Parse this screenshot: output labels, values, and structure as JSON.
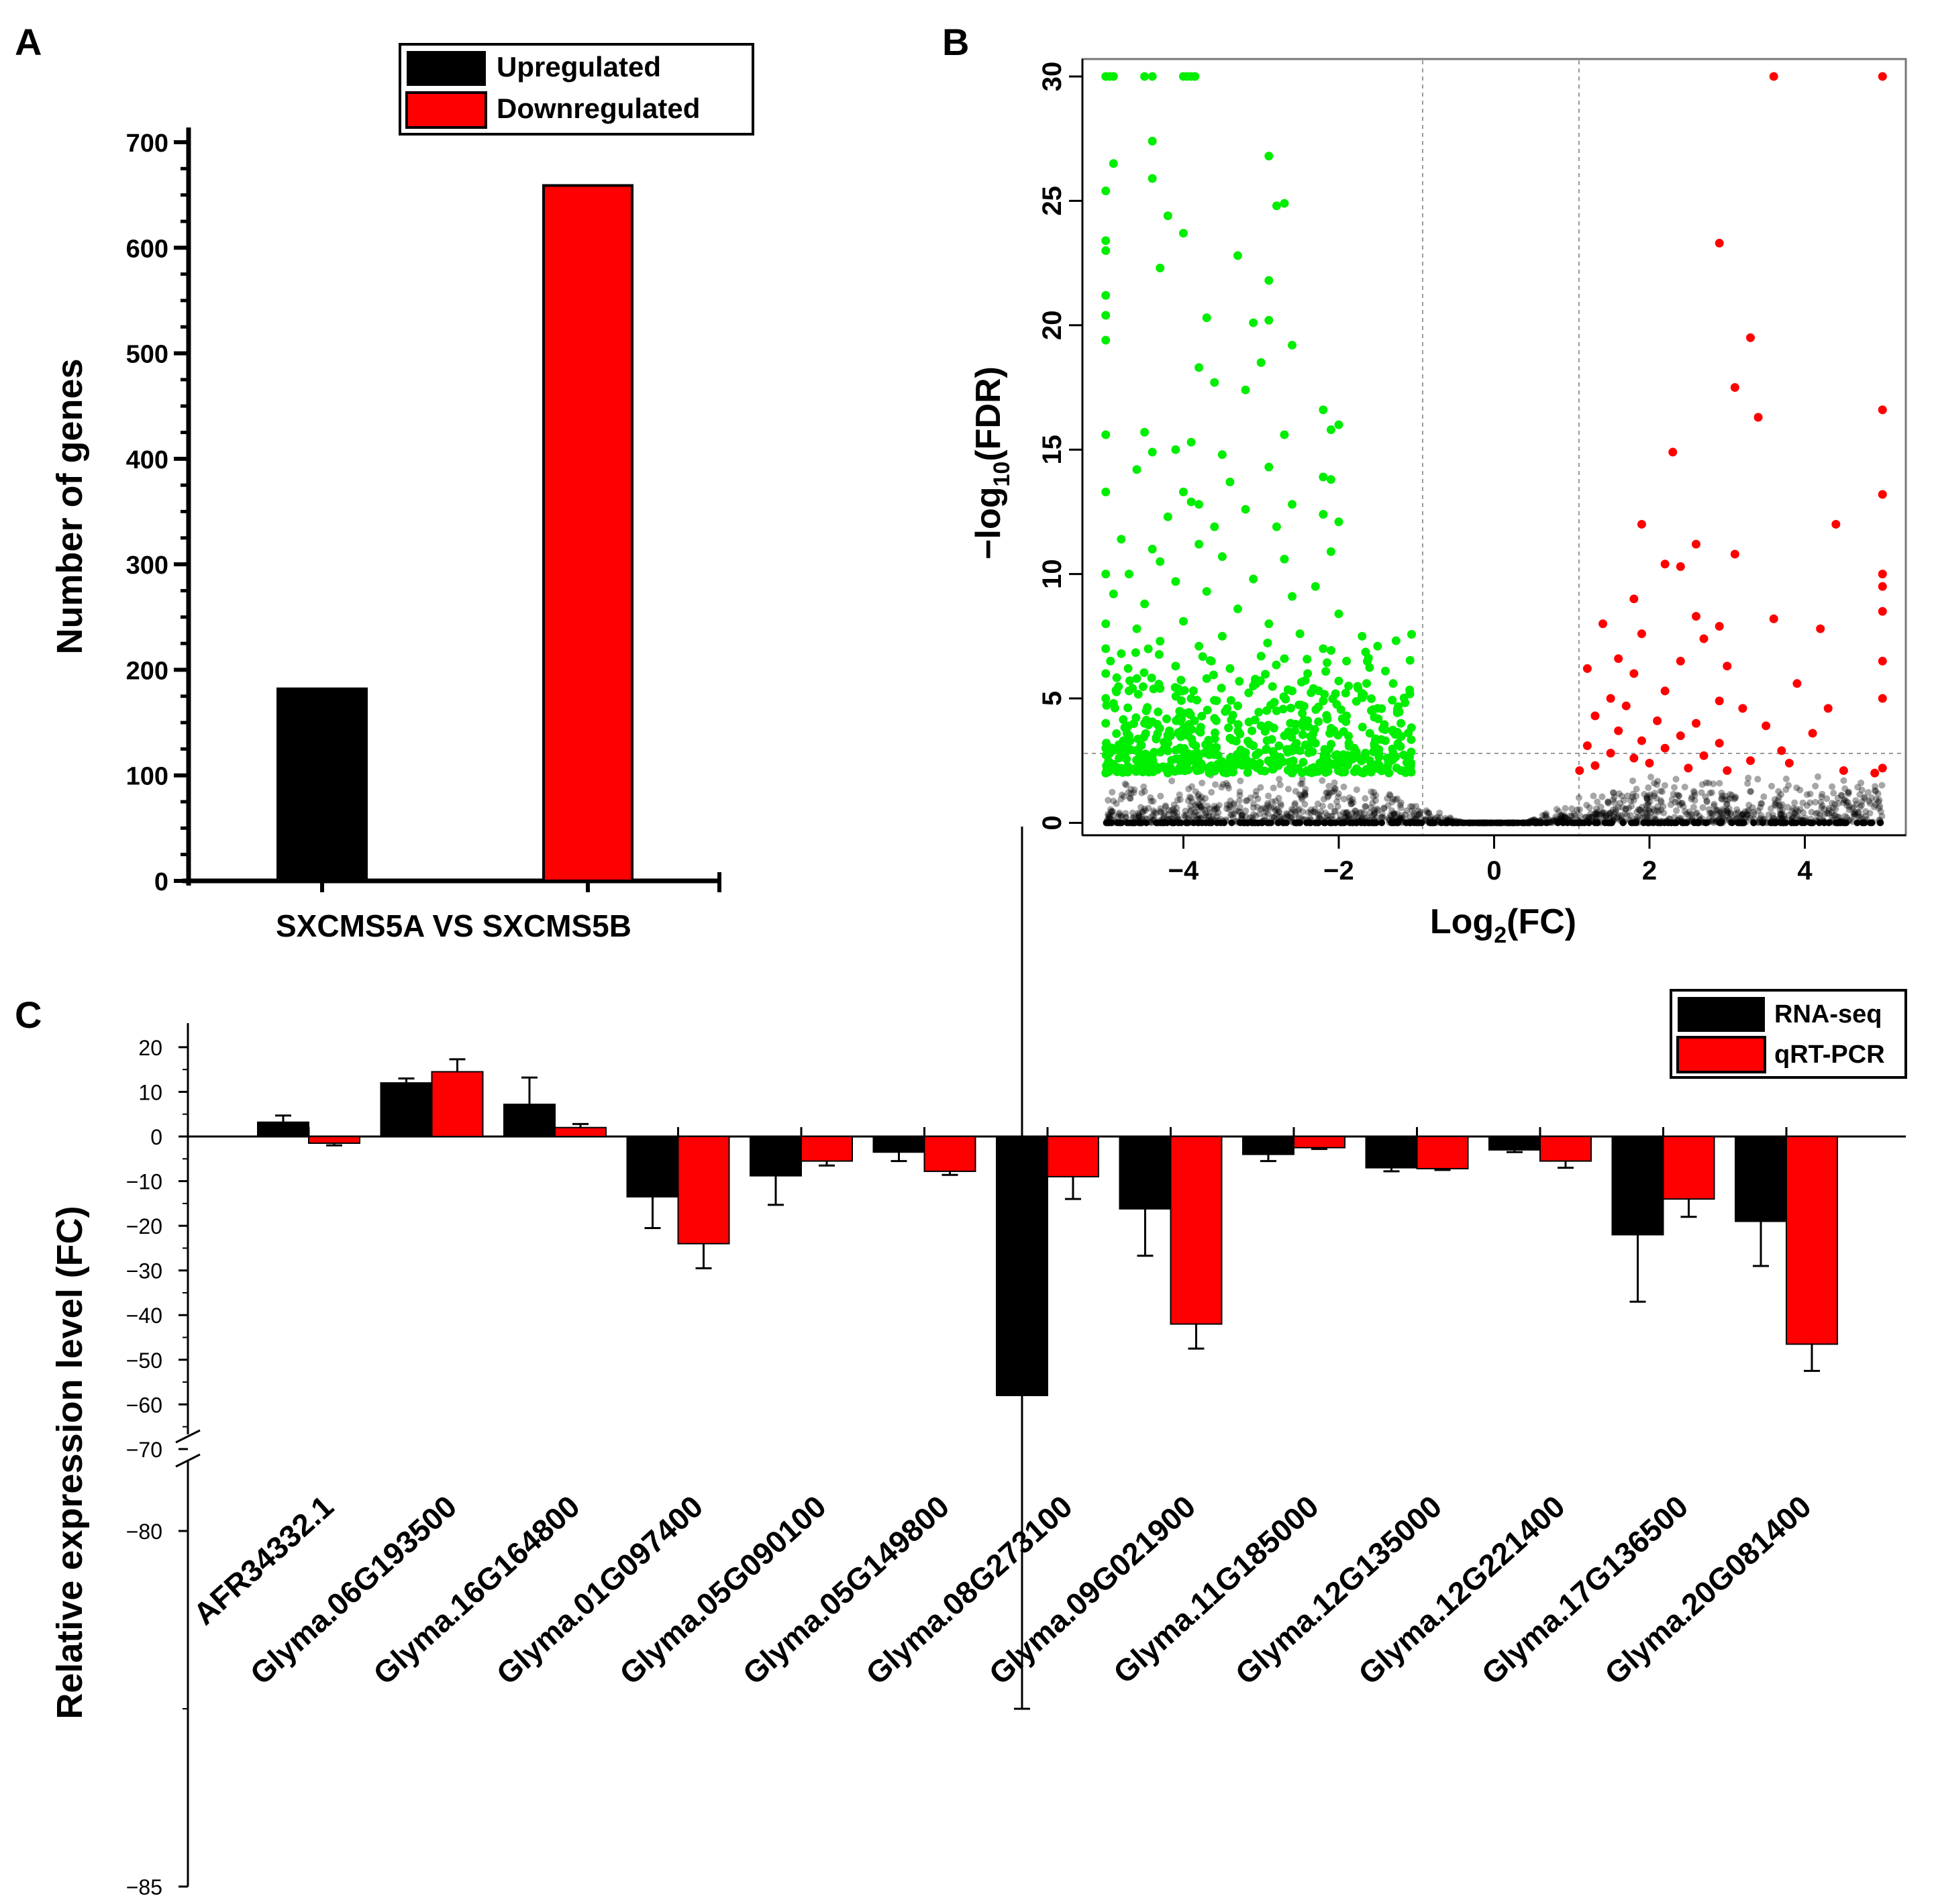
{
  "figure": {
    "panel_labels": [
      "A",
      "B",
      "C"
    ]
  },
  "chart_data": [
    {
      "panel": "A",
      "type": "bar",
      "title": "",
      "xlabel": "SXCMS5A VS SXCMS5B",
      "ylabel": "Number of genes",
      "ylim": [
        0,
        700
      ],
      "yticks": [
        "0",
        "100",
        "200",
        "300",
        "400",
        "500",
        "600",
        "700"
      ],
      "legend_position": "top-right",
      "series": [
        {
          "name": "Upregulated",
          "color": "#000000",
          "values": [
            182
          ]
        },
        {
          "name": "Downregulated",
          "color": "#ff0000",
          "values": [
            659
          ]
        }
      ]
    },
    {
      "panel": "B",
      "type": "scatter",
      "title": "",
      "xlabel_main": "Log",
      "xlabel_sub": "2",
      "xlabel_end": "(FC)",
      "ylabel_main": "−log",
      "ylabel_sub": "10",
      "ylabel_end": "(FDR)",
      "xlim": [
        -5.3,
        5.3
      ],
      "ylim": [
        -0.5,
        30.7
      ],
      "xticks": [
        {
          "value": -4,
          "label": "−4"
        },
        {
          "value": -2,
          "label": "−2"
        },
        {
          "value": 0,
          "label": "0"
        },
        {
          "value": 2,
          "label": "2"
        },
        {
          "value": 4,
          "label": "4"
        }
      ],
      "yticks": [
        {
          "value": 0,
          "label": "0"
        },
        {
          "value": 5,
          "label": "5"
        },
        {
          "value": 10,
          "label": "10"
        },
        {
          "value": 15,
          "label": "15"
        },
        {
          "value": 20,
          "label": "20"
        },
        {
          "value": 25,
          "label": "25"
        },
        {
          "value": 30,
          "label": "30"
        }
      ],
      "thresholds": {
        "log2fc": [
          -1,
          1
        ],
        "neg_log10_fdr": 2
      },
      "colors": {
        "down": "#00ee00",
        "up": "#ff0000",
        "ns": "#000000"
      },
      "down_highlight_points": [
        [
          -5.0,
          30
        ],
        [
          -4.95,
          30
        ],
        [
          -4.9,
          30
        ],
        [
          -4.5,
          30
        ],
        [
          -4.4,
          30
        ],
        [
          -4.0,
          30
        ],
        [
          -3.95,
          30
        ],
        [
          -3.9,
          30
        ],
        [
          -3.85,
          30
        ],
        [
          -4.4,
          27.4
        ],
        [
          -2.9,
          26.8
        ],
        [
          -4.9,
          26.5
        ],
        [
          -4.4,
          25.9
        ],
        [
          -5.0,
          25.4
        ],
        [
          -2.7,
          24.9
        ],
        [
          -2.8,
          24.8
        ],
        [
          -4.2,
          24.4
        ],
        [
          -4.0,
          23.7
        ],
        [
          -5.0,
          23.4
        ],
        [
          -5.0,
          23.0
        ],
        [
          -3.3,
          22.8
        ],
        [
          -4.3,
          22.3
        ],
        [
          -2.9,
          21.8
        ],
        [
          -5.0,
          21.2
        ],
        [
          -5.0,
          20.4
        ],
        [
          -3.7,
          20.3
        ],
        [
          -2.9,
          20.2
        ],
        [
          -3.1,
          20.1
        ],
        [
          -5.0,
          19.4
        ],
        [
          -2.6,
          19.2
        ],
        [
          -3.0,
          18.5
        ],
        [
          -3.8,
          18.3
        ],
        [
          -3.6,
          17.7
        ],
        [
          -3.2,
          17.4
        ],
        [
          -2.2,
          16.6
        ],
        [
          -2.0,
          16.0
        ],
        [
          -2.1,
          15.8
        ],
        [
          -4.5,
          15.7
        ],
        [
          -5.0,
          15.6
        ],
        [
          -3.9,
          15.3
        ],
        [
          -2.7,
          15.6
        ],
        [
          -4.1,
          15.0
        ],
        [
          -4.4,
          14.9
        ],
        [
          -3.5,
          14.8
        ],
        [
          -2.9,
          14.3
        ],
        [
          -4.6,
          14.2
        ],
        [
          -2.2,
          13.9
        ],
        [
          -2.1,
          13.8
        ],
        [
          -3.4,
          13.7
        ],
        [
          -4.0,
          13.3
        ],
        [
          -5.0,
          13.3
        ],
        [
          -3.9,
          12.9
        ],
        [
          -3.8,
          12.8
        ],
        [
          -2.6,
          12.8
        ],
        [
          -3.2,
          12.6
        ],
        [
          -2.2,
          12.4
        ],
        [
          -4.2,
          12.3
        ],
        [
          -2.0,
          12.1
        ],
        [
          -3.6,
          11.9
        ],
        [
          -2.8,
          11.9
        ],
        [
          -4.8,
          11.4
        ],
        [
          -3.8,
          11.2
        ],
        [
          -4.4,
          11.0
        ],
        [
          -2.1,
          10.9
        ],
        [
          -3.5,
          10.7
        ],
        [
          -2.7,
          10.6
        ],
        [
          -4.3,
          10.5
        ],
        [
          -4.7,
          10.0
        ],
        [
          -3.1,
          9.8
        ],
        [
          -4.1,
          9.7
        ],
        [
          -2.3,
          9.5
        ],
        [
          -3.7,
          9.3
        ],
        [
          -4.9,
          9.2
        ],
        [
          -2.6,
          9.1
        ],
        [
          -4.5,
          8.8
        ],
        [
          -3.3,
          8.6
        ],
        [
          -2.0,
          8.4
        ],
        [
          -4.0,
          8.1
        ],
        [
          -2.9,
          8.0
        ],
        [
          -4.6,
          7.8
        ],
        [
          -1.7,
          7.5
        ],
        [
          -3.5,
          7.5
        ],
        [
          -2.5,
          7.6
        ],
        [
          -4.3,
          7.3
        ],
        [
          -3.8,
          7.1
        ],
        [
          -2.2,
          7.0
        ],
        [
          -1.5,
          7.1
        ],
        [
          -4.8,
          6.8
        ],
        [
          -3.0,
          6.7
        ],
        [
          -2.7,
          6.6
        ],
        [
          -1.9,
          6.5
        ],
        [
          -4.1,
          6.3
        ],
        [
          -3.4,
          6.2
        ],
        [
          -1.4,
          6.1
        ],
        [
          -2.4,
          6.0
        ],
        [
          -4.6,
          5.8
        ],
        [
          -3.7,
          5.8
        ],
        [
          -2.0,
          5.7
        ],
        [
          -1.3,
          5.6
        ],
        [
          -3.1,
          5.5
        ],
        [
          -4.3,
          5.4
        ],
        [
          -2.6,
          5.3
        ],
        [
          -1.7,
          5.2
        ],
        [
          -3.9,
          5.0
        ],
        [
          -2.2,
          4.9
        ],
        [
          -4.9,
          4.8
        ],
        [
          -3.3,
          4.7
        ],
        [
          -1.5,
          4.6
        ],
        [
          -2.8,
          4.5
        ],
        [
          -4.0,
          4.4
        ],
        [
          -1.9,
          4.3
        ],
        [
          -3.6,
          4.2
        ],
        [
          -2.4,
          4.1
        ],
        [
          -4.5,
          4.0
        ],
        [
          -1.2,
          4.0
        ],
        [
          -3.0,
          3.9
        ],
        [
          -2.1,
          3.8
        ],
        [
          -3.8,
          3.7
        ],
        [
          -1.6,
          3.6
        ],
        [
          -4.7,
          3.5
        ],
        [
          -2.7,
          3.5
        ],
        [
          -3.4,
          3.4
        ],
        [
          -1.4,
          3.3
        ],
        [
          -4.2,
          3.2
        ],
        [
          -2.3,
          3.2
        ],
        [
          -3.1,
          3.1
        ],
        [
          -1.8,
          3.0
        ],
        [
          -4.8,
          2.9
        ],
        [
          -2.5,
          2.9
        ],
        [
          -3.7,
          2.8
        ],
        [
          -1.3,
          2.8
        ],
        [
          -4.4,
          2.7
        ],
        [
          -2.0,
          2.7
        ],
        [
          -3.2,
          2.6
        ],
        [
          -1.6,
          2.5
        ],
        [
          -4.0,
          2.5
        ],
        [
          -2.8,
          2.4
        ],
        [
          -3.5,
          2.3
        ],
        [
          -1.9,
          2.3
        ],
        [
          -4.6,
          2.2
        ],
        [
          -2.2,
          2.2
        ],
        [
          -3.0,
          2.1
        ],
        [
          -1.2,
          2.1
        ],
        [
          -4.2,
          2.0
        ],
        [
          -2.6,
          2.0
        ],
        [
          -5.0,
          2.0
        ],
        [
          -5.0,
          3.0
        ],
        [
          -5.0,
          4.0
        ],
        [
          -5.0,
          5.0
        ],
        [
          -5.0,
          6.0
        ],
        [
          -5.0,
          7.0
        ],
        [
          -5.0,
          8.0
        ],
        [
          -5.0,
          10.0
        ]
      ],
      "up_highlight_points": [
        [
          3.6,
          30
        ],
        [
          5.0,
          30
        ],
        [
          2.9,
          23.3
        ],
        [
          3.3,
          19.5
        ],
        [
          3.1,
          17.5
        ],
        [
          3.4,
          16.3
        ],
        [
          5.0,
          16.6
        ],
        [
          2.3,
          14.9
        ],
        [
          5.0,
          13.2
        ],
        [
          1.9,
          12.0
        ],
        [
          4.4,
          12.0
        ],
        [
          2.6,
          11.2
        ],
        [
          3.1,
          10.8
        ],
        [
          2.2,
          10.4
        ],
        [
          2.4,
          10.3
        ],
        [
          5.0,
          10.0
        ],
        [
          5.0,
          9.5
        ],
        [
          1.8,
          9.0
        ],
        [
          2.6,
          8.3
        ],
        [
          3.6,
          8.2
        ],
        [
          5.0,
          8.5
        ],
        [
          1.4,
          8.0
        ],
        [
          2.9,
          7.9
        ],
        [
          4.2,
          7.8
        ],
        [
          1.9,
          7.6
        ],
        [
          2.7,
          7.4
        ],
        [
          1.6,
          6.6
        ],
        [
          2.4,
          6.5
        ],
        [
          3.0,
          6.3
        ],
        [
          5.0,
          6.5
        ],
        [
          1.2,
          6.2
        ],
        [
          1.8,
          6.0
        ],
        [
          3.9,
          5.6
        ],
        [
          2.2,
          5.3
        ],
        [
          1.5,
          5.0
        ],
        [
          2.9,
          4.9
        ],
        [
          5.0,
          5.0
        ],
        [
          1.7,
          4.7
        ],
        [
          3.2,
          4.6
        ],
        [
          4.3,
          4.6
        ],
        [
          1.3,
          4.3
        ],
        [
          2.1,
          4.1
        ],
        [
          2.6,
          4.0
        ],
        [
          3.5,
          3.9
        ],
        [
          1.6,
          3.7
        ],
        [
          2.4,
          3.5
        ],
        [
          4.1,
          3.6
        ],
        [
          1.9,
          3.3
        ],
        [
          2.9,
          3.2
        ],
        [
          1.2,
          3.1
        ],
        [
          2.2,
          3.0
        ],
        [
          3.7,
          2.9
        ],
        [
          1.5,
          2.8
        ],
        [
          2.7,
          2.7
        ],
        [
          1.8,
          2.6
        ],
        [
          3.3,
          2.5
        ],
        [
          2.0,
          2.4
        ],
        [
          3.8,
          2.4
        ],
        [
          1.3,
          2.3
        ],
        [
          2.5,
          2.2
        ],
        [
          4.5,
          2.1
        ],
        [
          1.1,
          2.1
        ],
        [
          3.0,
          2.1
        ],
        [
          5.0,
          2.2
        ],
        [
          4.9,
          2.0
        ]
      ]
    },
    {
      "panel": "C",
      "type": "bar",
      "title": "",
      "xlabel": "",
      "ylabel": "Relative expression level (FC)",
      "ylim_upper": [
        -70,
        25
      ],
      "ylim_lower": [
        -85,
        -70
      ],
      "axis_break": -70,
      "yticks_upper": [
        "20",
        "10",
        "0",
        "−10",
        "−20",
        "−30",
        "−40",
        "−50",
        "−60",
        "−70"
      ],
      "yticks_lower": [
        "−80",
        "−85"
      ],
      "legend_position": "top-right",
      "categories": [
        "AFR34332.1",
        "Glyma.06G193500",
        "Glyma.16G164800",
        "Glyma.01G097400",
        "Glyma.05G090100",
        "Glyma.05G149800",
        "Glyma.08G273100",
        "Glyma.09G021900",
        "Glyma.11G185000",
        "Glyma.12G135000",
        "Glyma.12G221400",
        "Glyma.17G136500",
        "Glyma.20G081400"
      ],
      "series": [
        {
          "name": "RNA-seq",
          "color": "#000000",
          "values": [
            3.2,
            12.0,
            7.2,
            -13.5,
            -8.8,
            -3.5,
            -58.0,
            -16.2,
            -4.0,
            -7.0,
            -3.0,
            -22.0,
            -19.0
          ],
          "errors": [
            1.5,
            1.0,
            6.0,
            7.0,
            6.5,
            2.0,
            24.5,
            10.5,
            1.5,
            0.8,
            0.5,
            15.0,
            10.0
          ]
        },
        {
          "name": "qRT-PCR",
          "color": "#ff0000",
          "values": [
            -1.5,
            14.5,
            2.0,
            -24.0,
            -5.5,
            -7.8,
            -9.0,
            -42.0,
            -2.5,
            -7.2,
            -5.5,
            -14.0,
            -46.5
          ],
          "errors": [
            0.5,
            2.8,
            0.8,
            5.5,
            1.0,
            0.8,
            5.0,
            5.5,
            0.3,
            0.3,
            1.5,
            4.0,
            6.0
          ]
        }
      ]
    }
  ]
}
